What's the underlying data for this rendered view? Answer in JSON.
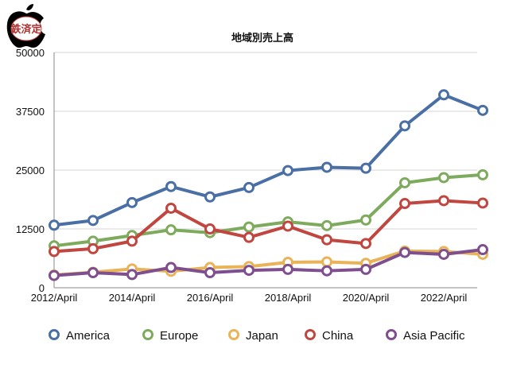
{
  "logo": {
    "text": "鉄済定",
    "icon": "apple-logo-icon"
  },
  "chart_data": {
    "type": "line",
    "title": "地域別売上高",
    "xlabel": "",
    "ylabel": "",
    "ylim": [
      0,
      50000
    ],
    "yticks": [
      0,
      12500,
      25000,
      37500,
      50000
    ],
    "x_tick_labels": [
      "2012/April",
      "2014/April",
      "2016/April",
      "2018/April",
      "2020/April",
      "2022/April"
    ],
    "x_count": 12,
    "x_tick_indices": [
      0,
      2,
      4,
      6,
      8,
      10
    ],
    "grid": true,
    "legend_position": "bottom",
    "series": [
      {
        "name": "America",
        "color": "#4a6fa5",
        "values": [
          13300,
          14300,
          18100,
          21500,
          19300,
          21300,
          24900,
          25600,
          25400,
          34400,
          41000,
          37700
        ]
      },
      {
        "name": "Europe",
        "color": "#7daa5c",
        "values": [
          8900,
          9900,
          11100,
          12300,
          11700,
          12900,
          14000,
          13200,
          14400,
          22300,
          23400,
          24000
        ]
      },
      {
        "name": "Japan",
        "color": "#e9b358",
        "values": [
          2700,
          3300,
          4000,
          3500,
          4300,
          4500,
          5400,
          5500,
          5200,
          7800,
          7700,
          7100
        ]
      },
      {
        "name": "China",
        "color": "#c0463f",
        "values": [
          7700,
          8300,
          9900,
          16900,
          12500,
          10700,
          13100,
          10200,
          9400,
          17900,
          18500,
          18000
        ]
      },
      {
        "name": "Asia Pacific",
        "color": "#7f4e8e",
        "values": [
          2600,
          3200,
          2800,
          4300,
          3200,
          3700,
          3900,
          3600,
          3900,
          7500,
          7100,
          8100
        ]
      }
    ]
  }
}
